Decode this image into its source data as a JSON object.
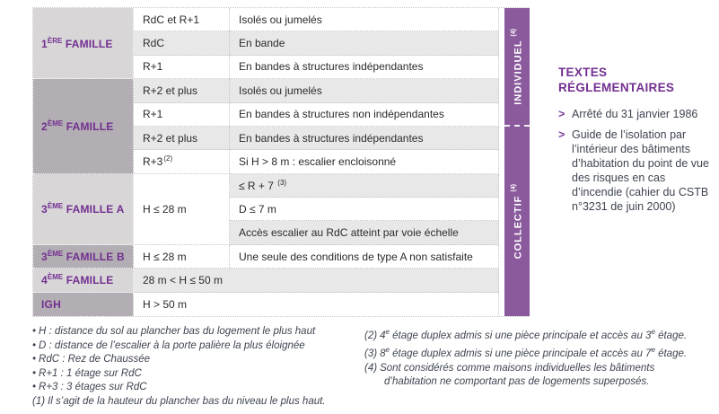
{
  "colors": {
    "purple_text": "#722f91",
    "purple_band": "#8a5a9c",
    "chevron": "#7d3f9d",
    "fam_light": "#d8d6d7",
    "fam_dark": "#b3aeb3",
    "row_even": "#e9e8e9",
    "table_text": "#2b2a2c",
    "note_text": "#3e4450",
    "dotted": "#c6c6c6"
  },
  "table": {
    "families": [
      {
        "id": "1ere-famille",
        "num": "1",
        "ord": "ÈRE",
        "rest": "FAMILLE",
        "row": 1,
        "span": 3,
        "shade": "light"
      },
      {
        "id": "2eme-famille",
        "num": "2",
        "ord": "ÈME",
        "rest": "FAMILLE",
        "row": 4,
        "span": 4,
        "shade": "dark"
      },
      {
        "id": "3eme-famille-a",
        "num": "3",
        "ord": "ÈME",
        "rest": "FAMILLE A",
        "row": 8,
        "span": 3,
        "shade": "light"
      },
      {
        "id": "3eme-famille-b",
        "num": "3",
        "ord": "ÈME",
        "rest": "FAMILLE B",
        "row": 11,
        "span": 1,
        "shade": "dark"
      },
      {
        "id": "4eme-famille",
        "num": "4",
        "ord": "ÈME",
        "rest": "FAMILLE",
        "row": 12,
        "span": 1,
        "shade": "light"
      },
      {
        "id": "igh",
        "num": "IGH",
        "ord": "",
        "rest": "",
        "row": 13,
        "span": 1,
        "shade": "dark"
      }
    ],
    "cells": [
      {
        "row": 1,
        "col": 2,
        "text": "RdC et R+1"
      },
      {
        "row": 1,
        "col": 3,
        "text": "Isolés ou jumelés"
      },
      {
        "row": 2,
        "col": 2,
        "text": "RdC"
      },
      {
        "row": 2,
        "col": 3,
        "text": "En bande"
      },
      {
        "row": 3,
        "col": 2,
        "text": "R+1"
      },
      {
        "row": 3,
        "col": 3,
        "text": "En bandes à structures indépendantes"
      },
      {
        "row": 4,
        "col": 2,
        "text": "R+2 et plus"
      },
      {
        "row": 4,
        "col": 3,
        "text": "Isolés ou jumelés"
      },
      {
        "row": 5,
        "col": 2,
        "text": "R+1"
      },
      {
        "row": 5,
        "col": 3,
        "text": "En bandes à structures non indépendantes"
      },
      {
        "row": 6,
        "col": 2,
        "text": "R+2 et plus"
      },
      {
        "row": 6,
        "col": 3,
        "text": "En bandes à structures indépendantes"
      },
      {
        "row": 7,
        "col": 2,
        "text": "R+3",
        "sup": "(2)"
      },
      {
        "row": 7,
        "col": 3,
        "text": "Si H > 8 m : escalier encloisonné"
      },
      {
        "row": 8,
        "col": 2,
        "text": "H ≤ 28 m",
        "rowspan": 3,
        "shade": "odd"
      },
      {
        "row": 8,
        "col": 3,
        "text": "≤ R + 7 ",
        "sup": "(3)"
      },
      {
        "row": 9,
        "col": 3,
        "text": "D ≤ 7 m"
      },
      {
        "row": 10,
        "col": 3,
        "text": "Accès escalier au RdC atteint par voie échelle"
      },
      {
        "row": 11,
        "col": 2,
        "text": "H ≤ 28 m"
      },
      {
        "row": 11,
        "col": 3,
        "text": "Une seule des conditions de type A non satisfaite"
      },
      {
        "row": 12,
        "col": 2,
        "text": "28 m < H ≤ 50 m",
        "colspan": 2
      },
      {
        "row": 13,
        "col": 2,
        "text": "H > 50 m",
        "colspan": 2
      }
    ],
    "band": [
      {
        "id": "individuel",
        "label": "INDIVIDUEL",
        "sup": "(4)",
        "row": 1,
        "span": 5
      },
      {
        "id": "collectif",
        "label": "COLLECTIF",
        "sup": "(4)",
        "row": 6,
        "span": 8
      }
    ]
  },
  "side_panel": {
    "title": "TEXTES RÉGLEMENTAIRES",
    "bullet_glyph": ">",
    "items": [
      "Arrêté du 31 janvier 1986",
      "Guide de l’isolation par l’intérieur des bâtiments d’habitation du point de vue des risques en cas d’incendie (cahier du CSTB n°3231 de juin 2000)"
    ]
  },
  "footnotes": {
    "left": [
      {
        "marker": "•",
        "parts": [
          {
            "t": "H : distance du sol au plancher bas du logement le plus haut"
          }
        ]
      },
      {
        "marker": "•",
        "parts": [
          {
            "t": "D : distance de l’escalier à la porte palière la plus éloignée"
          }
        ]
      },
      {
        "marker": "•",
        "parts": [
          {
            "t": "RdC : Rez de Chaussée"
          }
        ]
      },
      {
        "marker": "•",
        "parts": [
          {
            "t": "R+1 : 1 étage sur RdC"
          }
        ]
      },
      {
        "marker": "•",
        "parts": [
          {
            "t": "R+3 : 3 étages sur RdC"
          }
        ]
      },
      {
        "marker": "(1)",
        "parts": [
          {
            "t": "Il s’agit de la hauteur du plancher bas du niveau le plus haut."
          }
        ]
      }
    ],
    "right": [
      {
        "marker": "(2)",
        "parts": [
          {
            "t": "4"
          },
          {
            "s": "e"
          },
          {
            "t": " étage duplex admis si une pièce principale et accès au 3"
          },
          {
            "s": "e"
          },
          {
            "t": " étage."
          }
        ]
      },
      {
        "marker": "(3)",
        "parts": [
          {
            "t": "8"
          },
          {
            "s": "e"
          },
          {
            "t": " étage duplex admis si une pièce principale et accès au 7"
          },
          {
            "s": "e"
          },
          {
            "t": " étage."
          }
        ]
      },
      {
        "marker": "(4)",
        "parts": [
          {
            "t": "Sont considérés comme maisons individuelles les bâtiments d’habitation ne comportant pas de logements superposés."
          }
        ]
      }
    ]
  }
}
